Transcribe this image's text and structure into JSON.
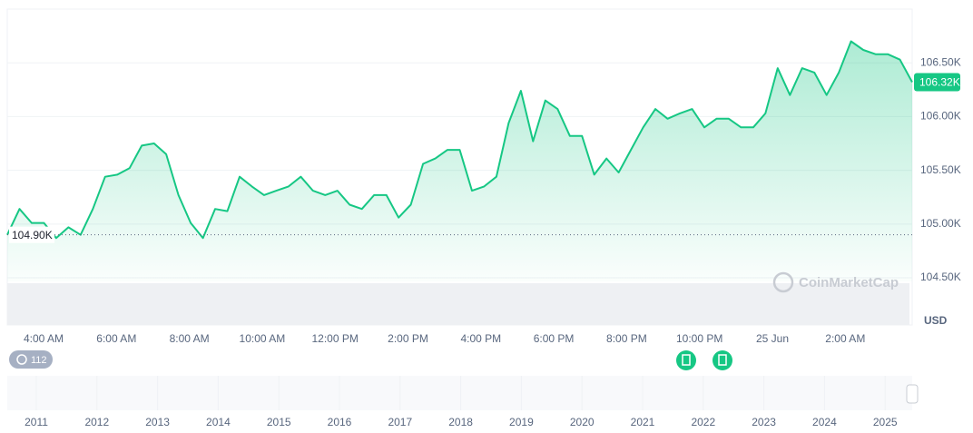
{
  "chart_data": {
    "type": "line",
    "color": "#16c784",
    "values": [
      104900,
      105140,
      105010,
      105010,
      104870,
      104970,
      104900,
      105140,
      105440,
      105460,
      105520,
      105730,
      105750,
      105650,
      105270,
      105010,
      104870,
      105140,
      105120,
      105440,
      105350,
      105270,
      105310,
      105350,
      105440,
      105310,
      105270,
      105310,
      105180,
      105140,
      105270,
      105270,
      105060,
      105180,
      105560,
      105610,
      105690,
      105690,
      105310,
      105350,
      105440,
      105940,
      106240,
      105770,
      106150,
      106070,
      105820,
      105820,
      105460,
      105610,
      105480,
      105690,
      105900,
      106070,
      105980,
      106030,
      106070,
      105900,
      105980,
      105980,
      105900,
      105900,
      106030,
      106450,
      106200,
      106450,
      106410,
      106200,
      106410,
      106700,
      106620,
      106580,
      106580,
      106530,
      106320
    ],
    "x_labels": [
      "4:00 AM",
      "6:00 AM",
      "8:00 AM",
      "10:00 AM",
      "12:00 PM",
      "2:00 PM",
      "4:00 PM",
      "6:00 PM",
      "8:00 PM",
      "10:00 PM",
      "25 Jun",
      "2:00 AM"
    ],
    "ylim": [
      104100,
      107000
    ],
    "yticks": [
      {
        "value": 104500,
        "label": "104.50K"
      },
      {
        "value": 105000,
        "label": "105.00K"
      },
      {
        "value": 105500,
        "label": "105.50K"
      },
      {
        "value": 106000,
        "label": "106.00K"
      },
      {
        "value": 106500,
        "label": "106.50K"
      }
    ],
    "grid": true,
    "baseline": {
      "value": 104900,
      "label": "104.90K"
    },
    "current_price": {
      "value": 106320,
      "label": "106.32K"
    },
    "currency": "USD",
    "watermark": "CoinMarketCap",
    "history_count": 112,
    "navigator_labels": [
      "2011",
      "2012",
      "2013",
      "2014",
      "2015",
      "2016",
      "2017",
      "2018",
      "2019",
      "2020",
      "2021",
      "2022",
      "2023",
      "2024",
      "2025"
    ]
  }
}
